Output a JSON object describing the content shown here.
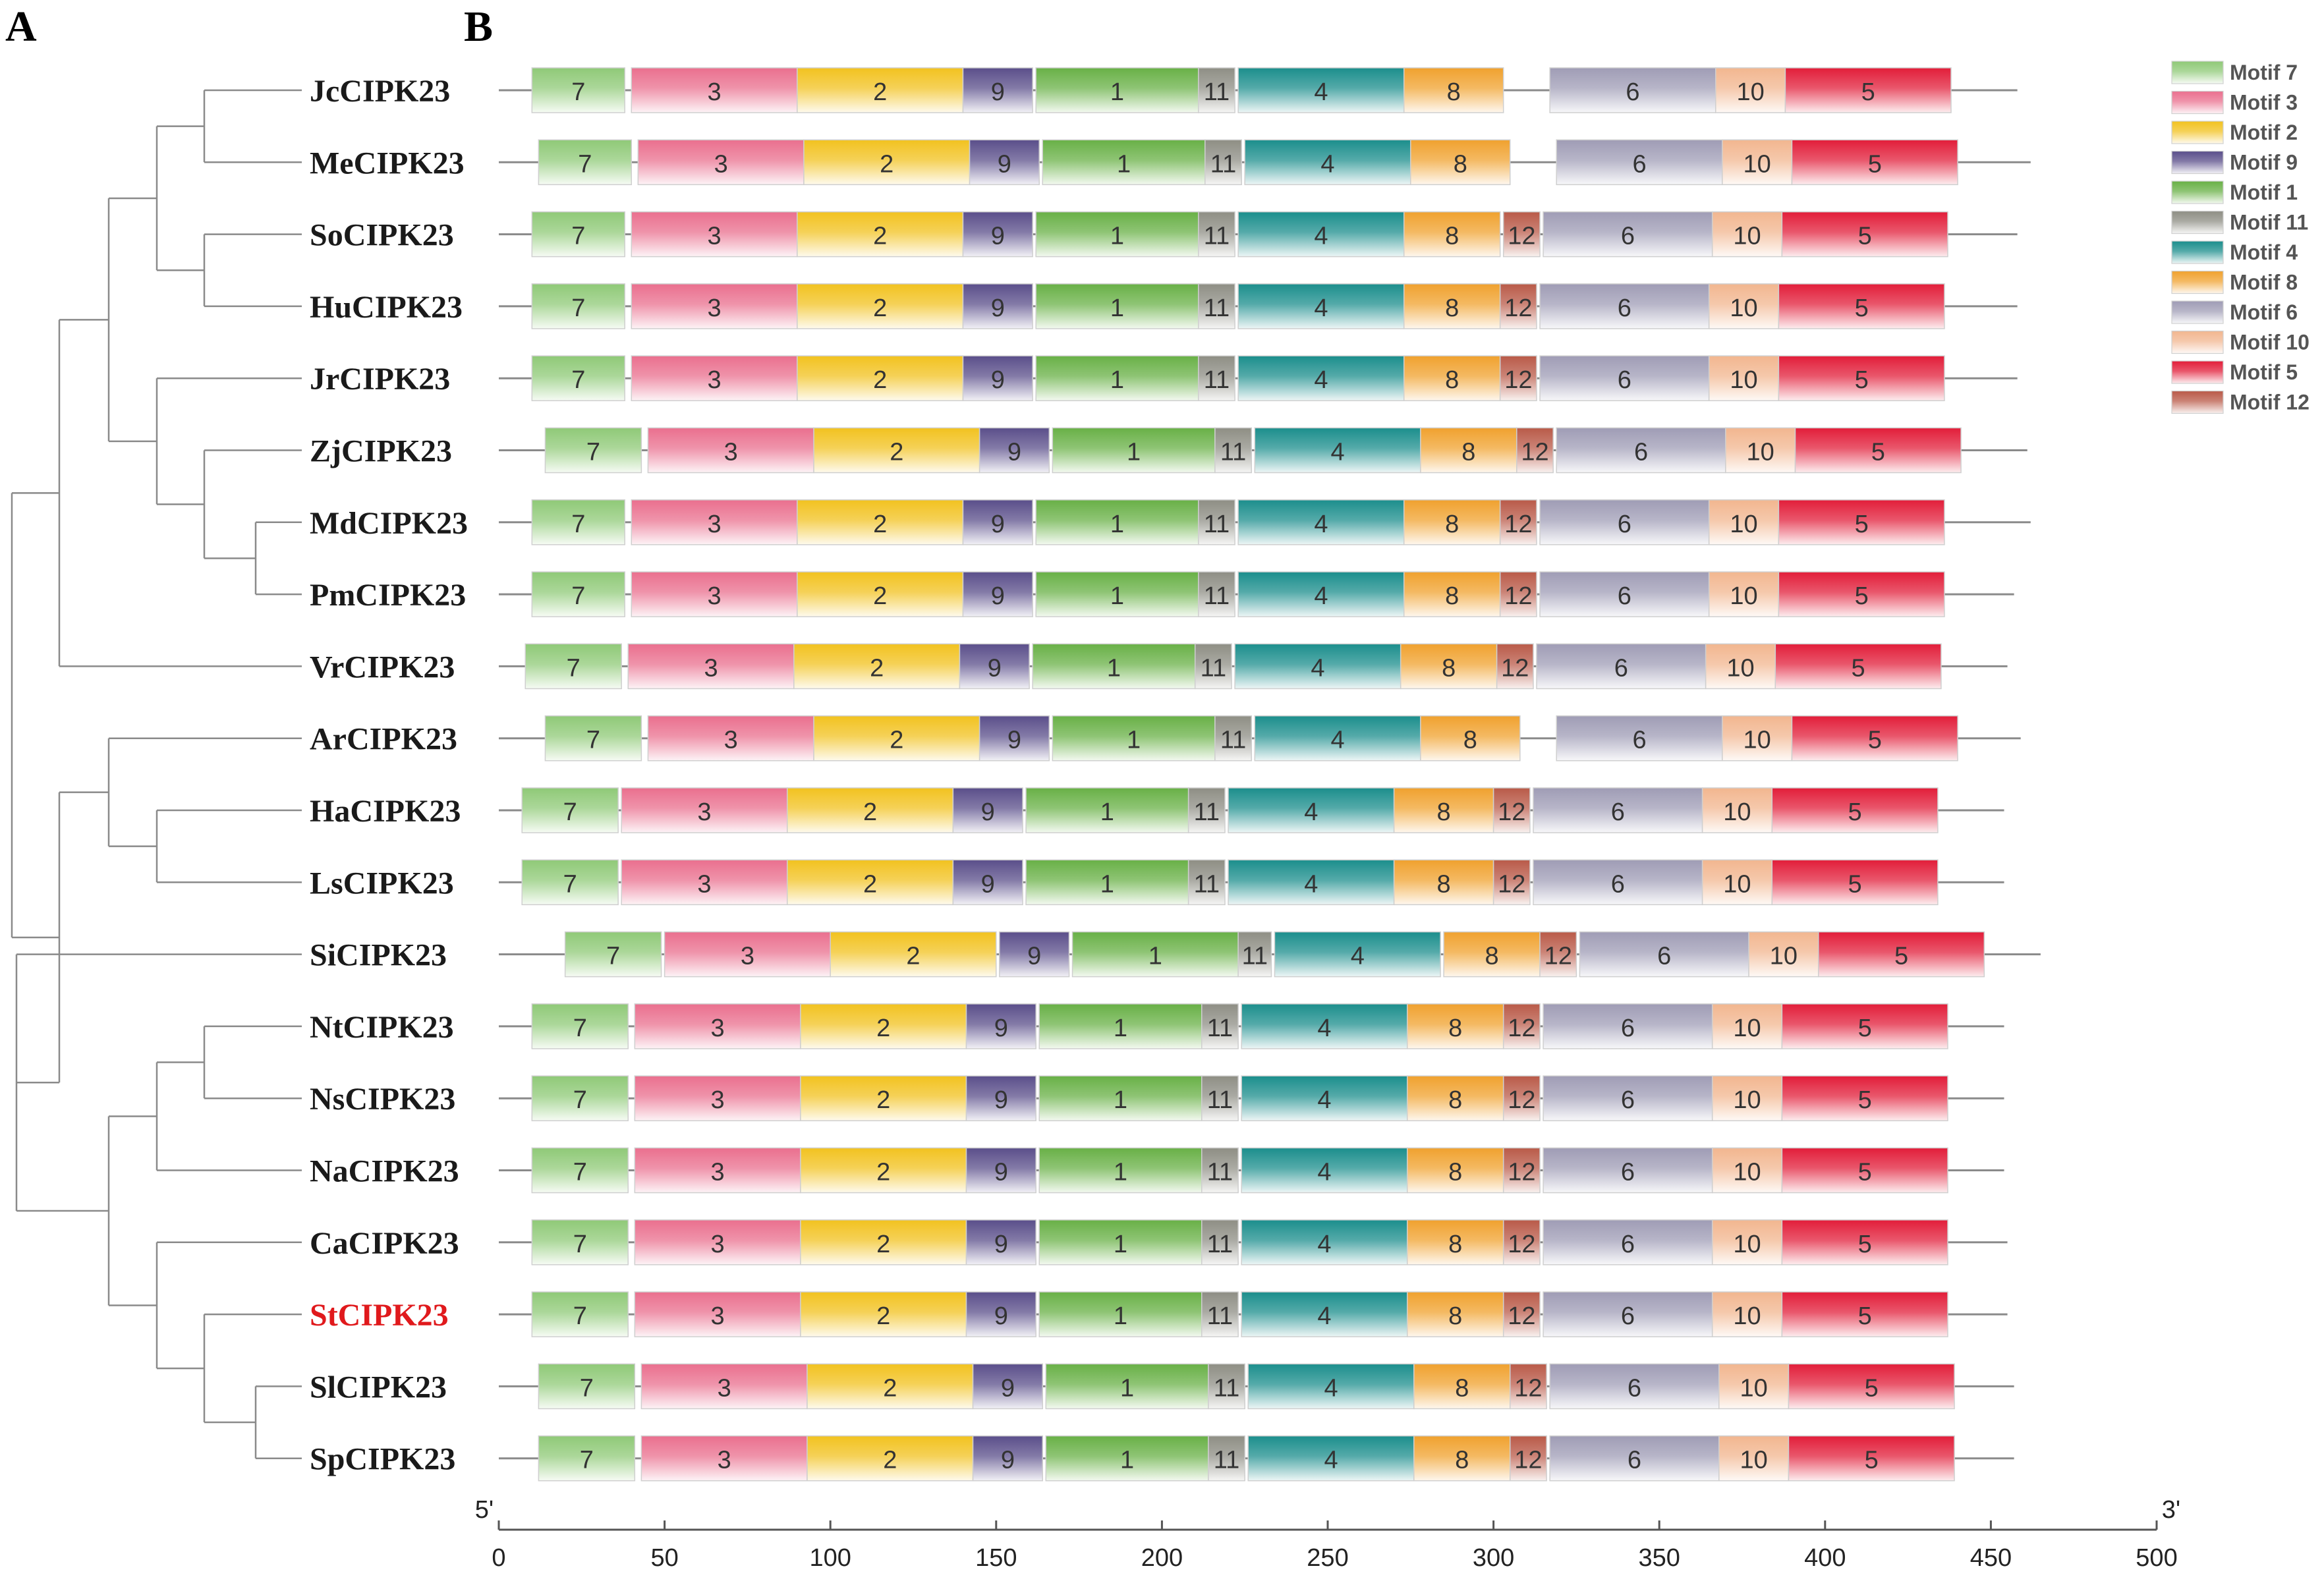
{
  "panels": {
    "a": "A",
    "b": "B"
  },
  "species": [
    {
      "name": "JcCIPK23",
      "highlight": false,
      "length": 458,
      "motifs": [
        [
          7,
          10,
          38
        ],
        [
          3,
          40,
          90
        ],
        [
          2,
          90,
          140
        ],
        [
          9,
          140,
          161
        ],
        [
          1,
          162,
          211
        ],
        [
          11,
          211,
          222
        ],
        [
          4,
          223,
          273
        ],
        [
          8,
          273,
          303
        ],
        [
          6,
          317,
          367
        ],
        [
          10,
          367,
          388
        ],
        [
          5,
          388,
          438
        ]
      ]
    },
    {
      "name": "MeCIPK23",
      "highlight": false,
      "length": 462,
      "motifs": [
        [
          7,
          12,
          40
        ],
        [
          3,
          42,
          92
        ],
        [
          2,
          92,
          142
        ],
        [
          9,
          142,
          163
        ],
        [
          1,
          164,
          213
        ],
        [
          11,
          213,
          224
        ],
        [
          4,
          225,
          275
        ],
        [
          8,
          275,
          305
        ],
        [
          6,
          319,
          369
        ],
        [
          10,
          369,
          390
        ],
        [
          5,
          390,
          440
        ]
      ]
    },
    {
      "name": "SoCIPK23",
      "highlight": false,
      "length": 458,
      "motifs": [
        [
          7,
          10,
          38
        ],
        [
          3,
          40,
          90
        ],
        [
          2,
          90,
          140
        ],
        [
          9,
          140,
          161
        ],
        [
          1,
          162,
          211
        ],
        [
          11,
          211,
          222
        ],
        [
          4,
          223,
          273
        ],
        [
          8,
          273,
          302
        ],
        [
          12,
          303,
          314
        ],
        [
          6,
          315,
          366
        ],
        [
          10,
          366,
          387
        ],
        [
          5,
          387,
          437
        ]
      ]
    },
    {
      "name": "HuCIPK23",
      "highlight": false,
      "length": 458,
      "motifs": [
        [
          7,
          10,
          38
        ],
        [
          3,
          40,
          90
        ],
        [
          2,
          90,
          140
        ],
        [
          9,
          140,
          161
        ],
        [
          1,
          162,
          211
        ],
        [
          11,
          211,
          222
        ],
        [
          4,
          223,
          273
        ],
        [
          8,
          273,
          302
        ],
        [
          12,
          302,
          313
        ],
        [
          6,
          314,
          365
        ],
        [
          10,
          365,
          386
        ],
        [
          5,
          386,
          436
        ]
      ]
    },
    {
      "name": "JrCIPK23",
      "highlight": false,
      "length": 458,
      "motifs": [
        [
          7,
          10,
          38
        ],
        [
          3,
          40,
          90
        ],
        [
          2,
          90,
          140
        ],
        [
          9,
          140,
          161
        ],
        [
          1,
          162,
          211
        ],
        [
          11,
          211,
          222
        ],
        [
          4,
          223,
          273
        ],
        [
          8,
          273,
          302
        ],
        [
          12,
          302,
          313
        ],
        [
          6,
          314,
          365
        ],
        [
          10,
          365,
          386
        ],
        [
          5,
          386,
          436
        ]
      ]
    },
    {
      "name": "ZjCIPK23",
      "highlight": false,
      "length": 461,
      "motifs": [
        [
          7,
          14,
          43
        ],
        [
          3,
          45,
          95
        ],
        [
          2,
          95,
          145
        ],
        [
          9,
          145,
          166
        ],
        [
          1,
          167,
          216
        ],
        [
          11,
          216,
          227
        ],
        [
          4,
          228,
          278
        ],
        [
          8,
          278,
          307
        ],
        [
          12,
          307,
          318
        ],
        [
          6,
          319,
          370
        ],
        [
          10,
          370,
          391
        ],
        [
          5,
          391,
          441
        ]
      ]
    },
    {
      "name": "MdCIPK23",
      "highlight": false,
      "length": 462,
      "motifs": [
        [
          7,
          10,
          38
        ],
        [
          3,
          40,
          90
        ],
        [
          2,
          90,
          140
        ],
        [
          9,
          140,
          161
        ],
        [
          1,
          162,
          211
        ],
        [
          11,
          211,
          222
        ],
        [
          4,
          223,
          273
        ],
        [
          8,
          273,
          302
        ],
        [
          12,
          302,
          313
        ],
        [
          6,
          314,
          365
        ],
        [
          10,
          365,
          386
        ],
        [
          5,
          386,
          436
        ]
      ]
    },
    {
      "name": "PmCIPK23",
      "highlight": false,
      "length": 457,
      "motifs": [
        [
          7,
          10,
          38
        ],
        [
          3,
          40,
          90
        ],
        [
          2,
          90,
          140
        ],
        [
          9,
          140,
          161
        ],
        [
          1,
          162,
          211
        ],
        [
          11,
          211,
          222
        ],
        [
          4,
          223,
          273
        ],
        [
          8,
          273,
          302
        ],
        [
          12,
          302,
          313
        ],
        [
          6,
          314,
          365
        ],
        [
          10,
          365,
          386
        ],
        [
          5,
          386,
          436
        ]
      ]
    },
    {
      "name": "VrCIPK23",
      "highlight": false,
      "length": 455,
      "motifs": [
        [
          7,
          8,
          37
        ],
        [
          3,
          39,
          89
        ],
        [
          2,
          89,
          139
        ],
        [
          9,
          139,
          160
        ],
        [
          1,
          161,
          210
        ],
        [
          11,
          210,
          221
        ],
        [
          4,
          222,
          272
        ],
        [
          8,
          272,
          301
        ],
        [
          12,
          301,
          312
        ],
        [
          6,
          313,
          364
        ],
        [
          10,
          364,
          385
        ],
        [
          5,
          385,
          435
        ]
      ]
    },
    {
      "name": "ArCIPK23",
      "highlight": false,
      "length": 459,
      "motifs": [
        [
          7,
          14,
          43
        ],
        [
          3,
          45,
          95
        ],
        [
          2,
          95,
          145
        ],
        [
          9,
          145,
          166
        ],
        [
          1,
          167,
          216
        ],
        [
          11,
          216,
          227
        ],
        [
          4,
          228,
          278
        ],
        [
          8,
          278,
          308
        ],
        [
          6,
          319,
          369
        ],
        [
          10,
          369,
          390
        ],
        [
          5,
          390,
          440
        ]
      ]
    },
    {
      "name": "HaCIPK23",
      "highlight": false,
      "length": 454,
      "motifs": [
        [
          7,
          7,
          36
        ],
        [
          3,
          37,
          87
        ],
        [
          2,
          87,
          137
        ],
        [
          9,
          137,
          158
        ],
        [
          1,
          159,
          208
        ],
        [
          11,
          208,
          219
        ],
        [
          4,
          220,
          270
        ],
        [
          8,
          270,
          300
        ],
        [
          12,
          300,
          311
        ],
        [
          6,
          312,
          363
        ],
        [
          10,
          363,
          384
        ],
        [
          5,
          384,
          434
        ]
      ]
    },
    {
      "name": "LsCIPK23",
      "highlight": false,
      "length": 454,
      "motifs": [
        [
          7,
          7,
          36
        ],
        [
          3,
          37,
          87
        ],
        [
          2,
          87,
          137
        ],
        [
          9,
          137,
          158
        ],
        [
          1,
          159,
          208
        ],
        [
          11,
          208,
          219
        ],
        [
          4,
          220,
          270
        ],
        [
          8,
          270,
          300
        ],
        [
          12,
          300,
          311
        ],
        [
          6,
          312,
          363
        ],
        [
          10,
          363,
          384
        ],
        [
          5,
          384,
          434
        ]
      ]
    },
    {
      "name": "SiCIPK23",
      "highlight": false,
      "length": 465,
      "motifs": [
        [
          7,
          20,
          49
        ],
        [
          3,
          50,
          100
        ],
        [
          2,
          100,
          150
        ],
        [
          9,
          151,
          172
        ],
        [
          1,
          173,
          223
        ],
        [
          11,
          223,
          233
        ],
        [
          4,
          234,
          284
        ],
        [
          8,
          285,
          314
        ],
        [
          12,
          314,
          325
        ],
        [
          6,
          326,
          377
        ],
        [
          10,
          377,
          398
        ],
        [
          5,
          398,
          448
        ]
      ]
    },
    {
      "name": "NtCIPK23",
      "highlight": false,
      "length": 454,
      "motifs": [
        [
          7,
          10,
          39
        ],
        [
          3,
          41,
          91
        ],
        [
          2,
          91,
          141
        ],
        [
          9,
          141,
          162
        ],
        [
          1,
          163,
          212
        ],
        [
          11,
          212,
          223
        ],
        [
          4,
          224,
          274
        ],
        [
          8,
          274,
          303
        ],
        [
          12,
          303,
          314
        ],
        [
          6,
          315,
          366
        ],
        [
          10,
          366,
          387
        ],
        [
          5,
          387,
          437
        ]
      ]
    },
    {
      "name": "NsCIPK23",
      "highlight": false,
      "length": 454,
      "motifs": [
        [
          7,
          10,
          39
        ],
        [
          3,
          41,
          91
        ],
        [
          2,
          91,
          141
        ],
        [
          9,
          141,
          162
        ],
        [
          1,
          163,
          212
        ],
        [
          11,
          212,
          223
        ],
        [
          4,
          224,
          274
        ],
        [
          8,
          274,
          303
        ],
        [
          12,
          303,
          314
        ],
        [
          6,
          315,
          366
        ],
        [
          10,
          366,
          387
        ],
        [
          5,
          387,
          437
        ]
      ]
    },
    {
      "name": "NaCIPK23",
      "highlight": false,
      "length": 454,
      "motifs": [
        [
          7,
          10,
          39
        ],
        [
          3,
          41,
          91
        ],
        [
          2,
          91,
          141
        ],
        [
          9,
          141,
          162
        ],
        [
          1,
          163,
          212
        ],
        [
          11,
          212,
          223
        ],
        [
          4,
          224,
          274
        ],
        [
          8,
          274,
          303
        ],
        [
          12,
          303,
          314
        ],
        [
          6,
          315,
          366
        ],
        [
          10,
          366,
          387
        ],
        [
          5,
          387,
          437
        ]
      ]
    },
    {
      "name": "CaCIPK23",
      "highlight": false,
      "length": 455,
      "motifs": [
        [
          7,
          10,
          39
        ],
        [
          3,
          41,
          91
        ],
        [
          2,
          91,
          141
        ],
        [
          9,
          141,
          162
        ],
        [
          1,
          163,
          212
        ],
        [
          11,
          212,
          223
        ],
        [
          4,
          224,
          274
        ],
        [
          8,
          274,
          303
        ],
        [
          12,
          303,
          314
        ],
        [
          6,
          315,
          366
        ],
        [
          10,
          366,
          387
        ],
        [
          5,
          387,
          437
        ]
      ]
    },
    {
      "name": "StCIPK23",
      "highlight": true,
      "length": 455,
      "motifs": [
        [
          7,
          10,
          39
        ],
        [
          3,
          41,
          91
        ],
        [
          2,
          91,
          141
        ],
        [
          9,
          141,
          162
        ],
        [
          1,
          163,
          212
        ],
        [
          11,
          212,
          223
        ],
        [
          4,
          224,
          274
        ],
        [
          8,
          274,
          303
        ],
        [
          12,
          303,
          314
        ],
        [
          6,
          315,
          366
        ],
        [
          10,
          366,
          387
        ],
        [
          5,
          387,
          437
        ]
      ]
    },
    {
      "name": "SlCIPK23",
      "highlight": false,
      "length": 457,
      "motifs": [
        [
          7,
          12,
          41
        ],
        [
          3,
          43,
          93
        ],
        [
          2,
          93,
          143
        ],
        [
          9,
          143,
          164
        ],
        [
          1,
          165,
          214
        ],
        [
          11,
          214,
          225
        ],
        [
          4,
          226,
          276
        ],
        [
          8,
          276,
          305
        ],
        [
          12,
          305,
          316
        ],
        [
          6,
          317,
          368
        ],
        [
          10,
          368,
          389
        ],
        [
          5,
          389,
          439
        ]
      ]
    },
    {
      "name": "SpCIPK23",
      "highlight": false,
      "length": 457,
      "motifs": [
        [
          7,
          12,
          41
        ],
        [
          3,
          43,
          93
        ],
        [
          2,
          93,
          143
        ],
        [
          9,
          143,
          164
        ],
        [
          1,
          165,
          214
        ],
        [
          11,
          214,
          225
        ],
        [
          4,
          226,
          276
        ],
        [
          8,
          276,
          305
        ],
        [
          12,
          305,
          316
        ],
        [
          6,
          317,
          368
        ],
        [
          10,
          368,
          389
        ],
        [
          5,
          389,
          439
        ]
      ]
    }
  ],
  "motif_colors": {
    "7": "#8fc977",
    "3": "#ea6f8e",
    "2": "#f2c21f",
    "9": "#5a4e8a",
    "1": "#68b046",
    "11": "#8e8e84",
    "4": "#1b8e8c",
    "8": "#f0a12e",
    "6": "#9f9cb5",
    "10": "#f2b68f",
    "5": "#e21d39",
    "12": "#b95a48"
  },
  "legend": [
    {
      "motif": "7",
      "label": "Motif 7"
    },
    {
      "motif": "3",
      "label": "Motif 3"
    },
    {
      "motif": "2",
      "label": "Motif 2"
    },
    {
      "motif": "9",
      "label": "Motif 9"
    },
    {
      "motif": "1",
      "label": "Motif 1"
    },
    {
      "motif": "11",
      "label": "Motif 11"
    },
    {
      "motif": "4",
      "label": "Motif 4"
    },
    {
      "motif": "8",
      "label": "Motif 8"
    },
    {
      "motif": "6",
      "label": "Motif 6"
    },
    {
      "motif": "10",
      "label": "Motif 10"
    },
    {
      "motif": "5",
      "label": "Motif 5"
    },
    {
      "motif": "12",
      "label": "Motif 12"
    }
  ],
  "axis": {
    "ticks": [
      0,
      50,
      100,
      150,
      200,
      250,
      300,
      350,
      400,
      450,
      500
    ],
    "range": [
      0,
      500
    ],
    "start_label": "5'",
    "end_label": "3'"
  }
}
